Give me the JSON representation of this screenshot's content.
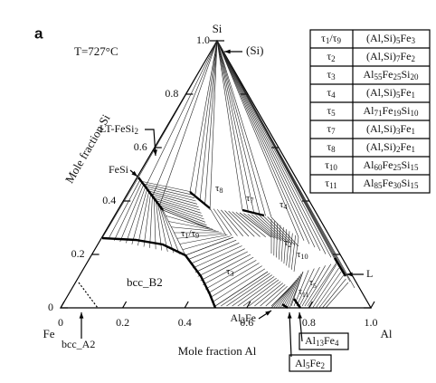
{
  "panel_label": "a",
  "temperature": "T=727°C",
  "vertices": {
    "si": "Si",
    "fe": "Fe",
    "al": "Al"
  },
  "axes": {
    "si_label": "Mole fraction Si",
    "al_label": "Mole fraction Al",
    "si_ticks": [
      "0",
      "0.2",
      "0.4",
      "0.6",
      "0.8",
      "1.0"
    ],
    "al_ticks": [
      "0",
      "0.2",
      "0.4",
      "0.6",
      "0.8",
      "1.0"
    ]
  },
  "phases": {
    "si": "(Si)",
    "lt_fesi2": "LT-FeSi2",
    "fesi": "FeSi",
    "bcc_b2": "bcc_B2",
    "bcc_a2": "bcc_A2",
    "al2fe": "Al2Fe",
    "al5fe2": "Al5Fe2",
    "al13fe4": "Al13Fe4",
    "liquid": "L",
    "t8": "τ8",
    "t7": "τ7",
    "t4": "τ4",
    "t1t9": "τ1/τ9",
    "t3": "τ3",
    "t2": "τ2",
    "t10": "τ10",
    "t11": "τ11",
    "t5": "τ5"
  },
  "table": {
    "rows": [
      [
        "τ1/τ9",
        "(Al,Si)5Fe3"
      ],
      [
        "τ2",
        "(Al,Si)7Fe2"
      ],
      [
        "τ3",
        "Al55Fe25Si20"
      ],
      [
        "τ4",
        "(Al,Si)5Fe1"
      ],
      [
        "τ5",
        "Al71Fe19Si10"
      ],
      [
        "τ7",
        "(Al,Si)3Fe1"
      ],
      [
        "τ8",
        "(Al,Si)2Fe1"
      ],
      [
        "τ10",
        "Al60Fe25Si15"
      ],
      [
        "τ11",
        "Al85Fe30Si15"
      ]
    ]
  }
}
